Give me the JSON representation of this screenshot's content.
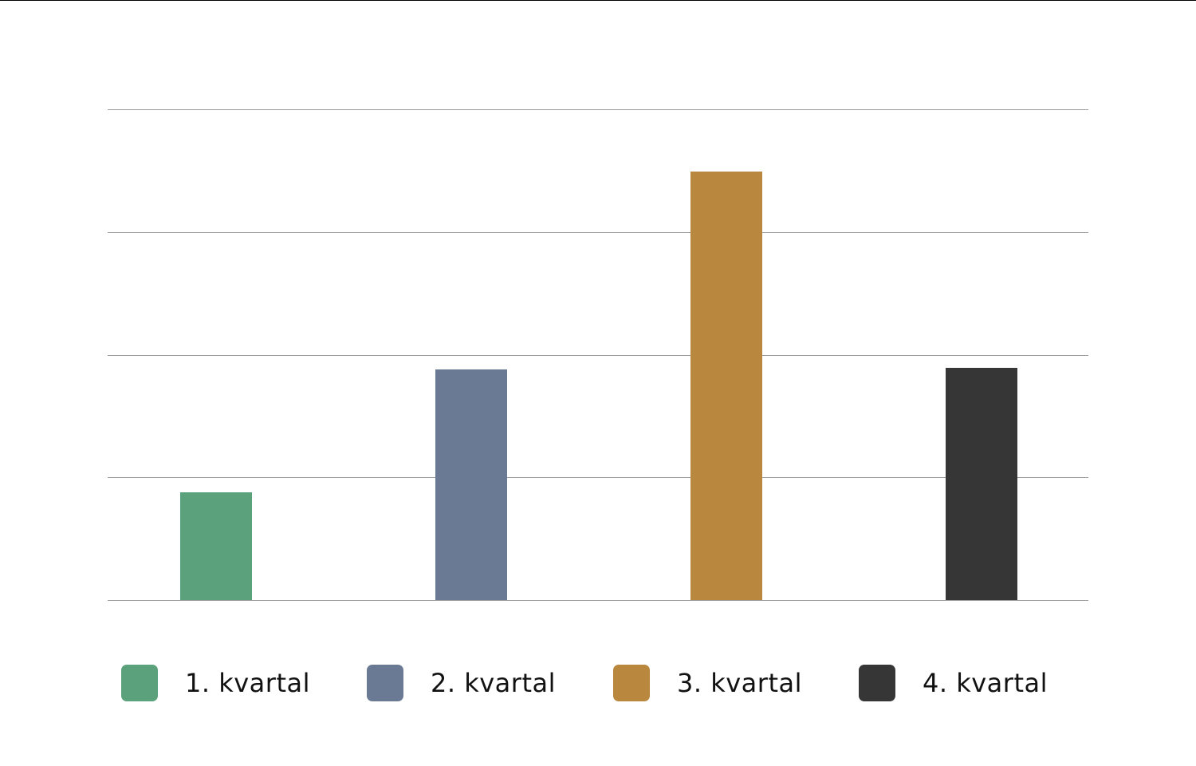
{
  "chart_data": {
    "type": "bar",
    "title": "",
    "xlabel": "",
    "ylabel": "",
    "categories": [
      "1. kvartal",
      "2. kvartal",
      "3. kvartal",
      "4. kvartal"
    ],
    "values": [
      0.88,
      1.88,
      3.49,
      1.89
    ],
    "colors": [
      "#5ba27c",
      "#6b7a94",
      "#b9873d",
      "#363636"
    ],
    "ylim": [
      0,
      4
    ],
    "gridlines": [
      0,
      1,
      2,
      3,
      4
    ],
    "grid": true,
    "y_tick_labels_visible": false,
    "legend_position": "bottom"
  },
  "legend": {
    "items": [
      {
        "label": "1. kvartal",
        "color": "#5ba27c"
      },
      {
        "label": "2. kvartal",
        "color": "#6b7a94"
      },
      {
        "label": "3. kvartal",
        "color": "#b9873d"
      },
      {
        "label": "4. kvartal",
        "color": "#363636"
      }
    ]
  }
}
